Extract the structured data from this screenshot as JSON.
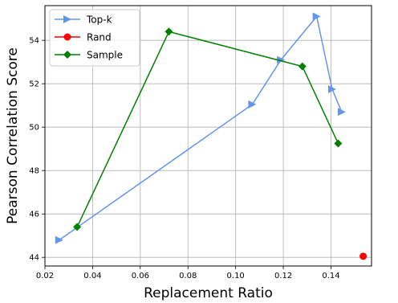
{
  "chart_data": {
    "type": "line",
    "xlabel": "Replacement Ratio",
    "ylabel": "Pearson Correlation Score",
    "xlim": [
      0.02,
      0.157
    ],
    "ylim": [
      43.6,
      55.6
    ],
    "x_ticks": [
      0.02,
      0.04,
      0.06,
      0.08,
      0.1,
      0.12,
      0.14
    ],
    "x_tick_labels": [
      "0.02",
      "0.04",
      "0.06",
      "0.08",
      "0.10",
      "0.12",
      "0.14"
    ],
    "y_ticks": [
      44,
      46,
      48,
      50,
      52,
      54
    ],
    "y_tick_labels": [
      "44",
      "46",
      "48",
      "50",
      "52",
      "54"
    ],
    "grid": true,
    "legend_position": "top-left",
    "series": [
      {
        "name": "Top-k",
        "color": "#6495ed",
        "marker": "triangle-right",
        "x": [
          0.026,
          0.107,
          0.119,
          0.134,
          0.1405,
          0.1445
        ],
        "y": [
          44.8,
          51.05,
          53.1,
          55.1,
          51.75,
          50.7
        ]
      },
      {
        "name": "Rand",
        "color": "#ff0000",
        "marker": "circle",
        "x": [
          0.1535
        ],
        "y": [
          44.05
        ]
      },
      {
        "name": "Sample",
        "color": "#008000",
        "marker": "diamond",
        "x": [
          0.0335,
          0.072,
          0.128,
          0.143
        ],
        "y": [
          45.4,
          54.4,
          52.8,
          49.25
        ]
      }
    ]
  }
}
